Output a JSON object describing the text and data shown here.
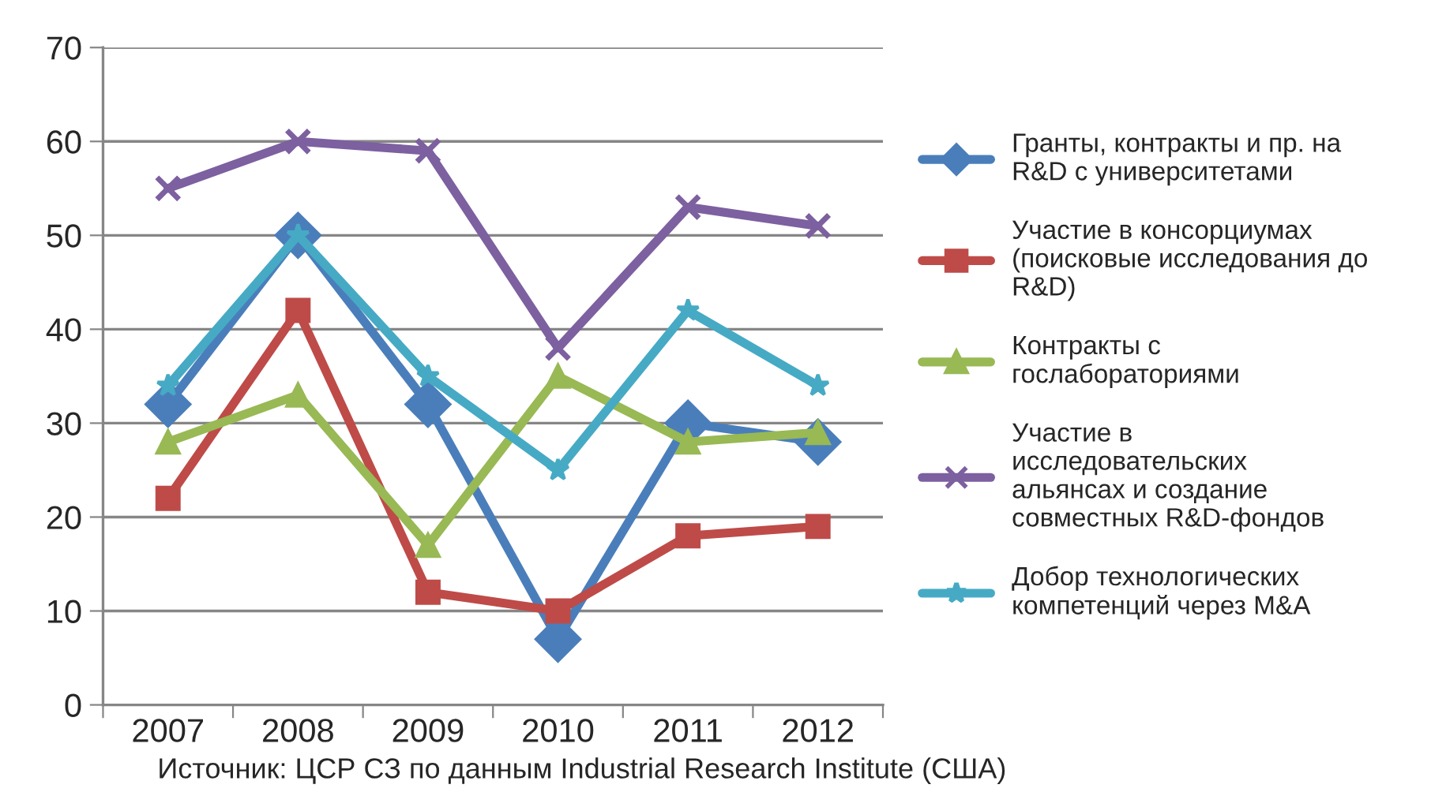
{
  "chart_data": {
    "type": "line",
    "categories": [
      "2007",
      "2008",
      "2009",
      "2010",
      "2011",
      "2012"
    ],
    "series": [
      {
        "name": "Гранты, контракты и пр. на\nR&D с университетами",
        "color": "#4a7ebb",
        "marker": "diamond",
        "values": [
          32,
          50,
          32,
          7,
          30,
          28
        ]
      },
      {
        "name": "Участие в консорциумах\n(поисковые исследования до\nR&D)",
        "color": "#be4b48",
        "marker": "square",
        "values": [
          22,
          42,
          12,
          10,
          18,
          19
        ]
      },
      {
        "name": "Контракты с\nгослабораториями",
        "color": "#98b954",
        "marker": "triangle",
        "values": [
          28,
          33,
          17,
          35,
          28,
          29
        ]
      },
      {
        "name": "Участие в\nисследовательских\nальянсах и создание\nсовместных R&D-фондов",
        "color": "#7d60a0",
        "marker": "cross",
        "values": [
          55,
          60,
          59,
          38,
          53,
          51
        ]
      },
      {
        "name": "Добор технологических\nкомпетенций через M&A",
        "color": "#46aac5",
        "marker": "star",
        "values": [
          34,
          50,
          35,
          25,
          42,
          34
        ]
      }
    ],
    "ylim": [
      0,
      70
    ],
    "yticks": [
      0,
      10,
      20,
      30,
      40,
      50,
      60,
      70
    ],
    "grid": "y",
    "legend": "right",
    "line_style": "solid",
    "annotations": [
      "Источник: ЦСР СЗ по данным Industrial Research Institute (США)"
    ]
  }
}
